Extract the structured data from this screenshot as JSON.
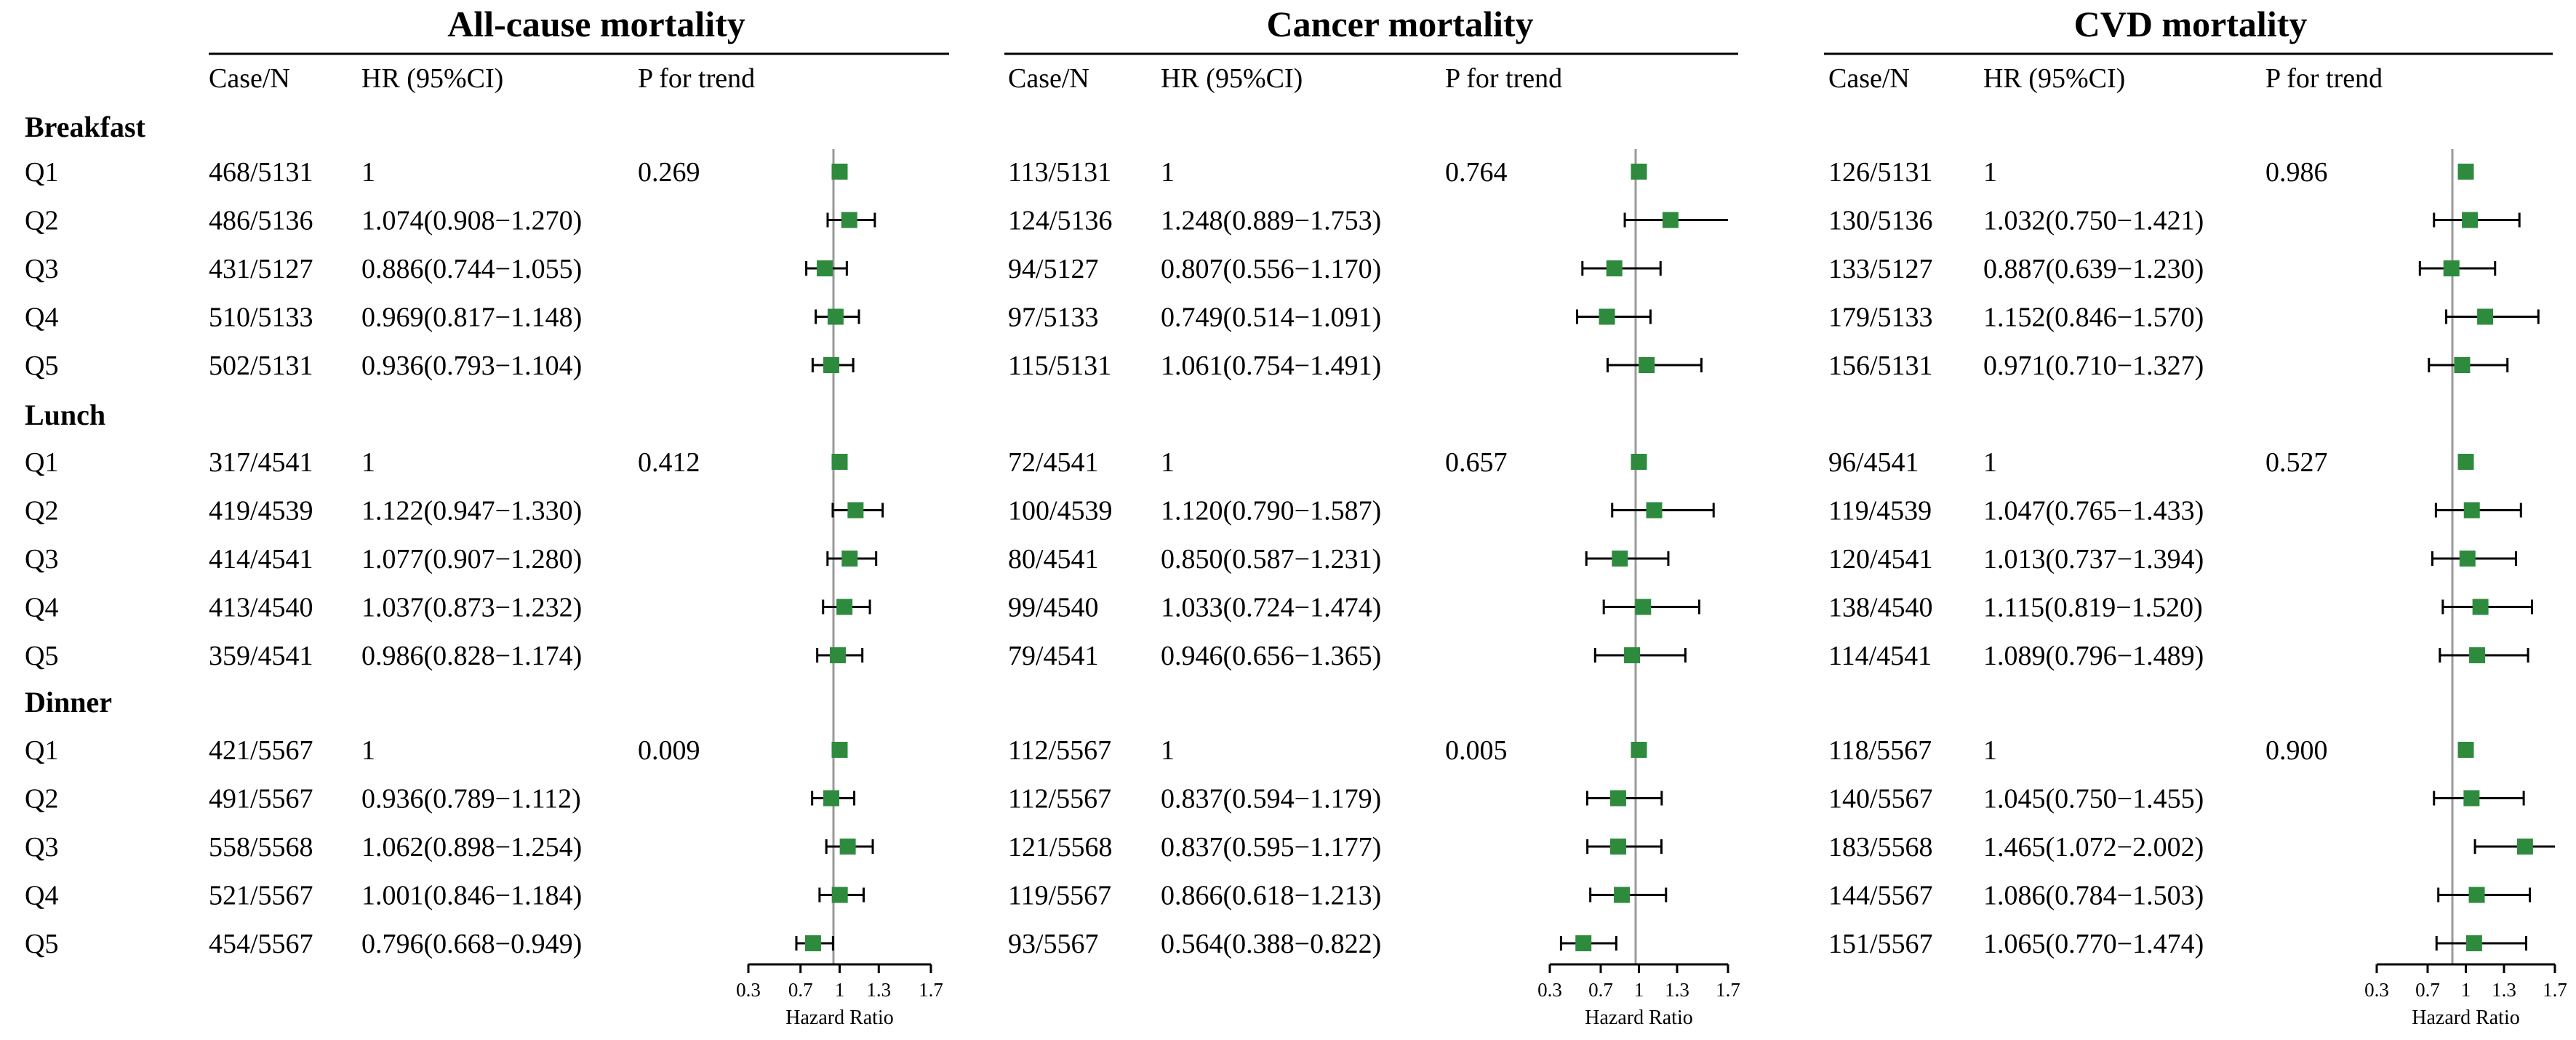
{
  "column_headers": {
    "case": "Case/N",
    "hr": "HR (95%CI)",
    "p": "P for trend"
  },
  "row_labels": [
    "Q1",
    "Q2",
    "Q3",
    "Q4",
    "Q5"
  ],
  "axis": {
    "ticks": [
      "0.3",
      "0.7",
      "1",
      "1.3",
      "1.7"
    ],
    "label": "Hazard Ratio"
  },
  "colors": {
    "marker": "#2e8b3e",
    "reference_line": "#9a9a9a",
    "ink": "#000000"
  },
  "chart_data": {
    "type": "forest",
    "xlim": [
      0.3,
      1.7
    ],
    "xticks": [
      0.3,
      0.7,
      1,
      1.3,
      1.7
    ],
    "xlabel": "Hazard Ratio",
    "reference": 1,
    "panels": [
      {
        "title": "All-cause mortality",
        "groups": [
          {
            "name": "Breakfast",
            "p_trend": "0.269",
            "rows": [
              {
                "q": "Q1",
                "case_n": "468/5131",
                "hr_text": "1",
                "hr": 1,
                "lo": null,
                "hi": null
              },
              {
                "q": "Q2",
                "case_n": "486/5136",
                "hr_text": "1.074(0.908−1.270)",
                "hr": 1.074,
                "lo": 0.908,
                "hi": 1.27
              },
              {
                "q": "Q3",
                "case_n": "431/5127",
                "hr_text": "0.886(0.744−1.055)",
                "hr": 0.886,
                "lo": 0.744,
                "hi": 1.055
              },
              {
                "q": "Q4",
                "case_n": "510/5133",
                "hr_text": "0.969(0.817−1.148)",
                "hr": 0.969,
                "lo": 0.817,
                "hi": 1.148
              },
              {
                "q": "Q5",
                "case_n": "502/5131",
                "hr_text": "0.936(0.793−1.104)",
                "hr": 0.936,
                "lo": 0.793,
                "hi": 1.104
              }
            ]
          },
          {
            "name": "Lunch",
            "p_trend": "0.412",
            "rows": [
              {
                "q": "Q1",
                "case_n": "317/4541",
                "hr_text": "1",
                "hr": 1,
                "lo": null,
                "hi": null
              },
              {
                "q": "Q2",
                "case_n": "419/4539",
                "hr_text": "1.122(0.947−1.330)",
                "hr": 1.122,
                "lo": 0.947,
                "hi": 1.33
              },
              {
                "q": "Q3",
                "case_n": "414/4541",
                "hr_text": "1.077(0.907−1.280)",
                "hr": 1.077,
                "lo": 0.907,
                "hi": 1.28
              },
              {
                "q": "Q4",
                "case_n": "413/4540",
                "hr_text": "1.037(0.873−1.232)",
                "hr": 1.037,
                "lo": 0.873,
                "hi": 1.232
              },
              {
                "q": "Q5",
                "case_n": "359/4541",
                "hr_text": "0.986(0.828−1.174)",
                "hr": 0.986,
                "lo": 0.828,
                "hi": 1.174
              }
            ]
          },
          {
            "name": "Dinner",
            "p_trend": "0.009",
            "rows": [
              {
                "q": "Q1",
                "case_n": "421/5567",
                "hr_text": "1",
                "hr": 1,
                "lo": null,
                "hi": null
              },
              {
                "q": "Q2",
                "case_n": "491/5567",
                "hr_text": "0.936(0.789−1.112)",
                "hr": 0.936,
                "lo": 0.789,
                "hi": 1.112
              },
              {
                "q": "Q3",
                "case_n": "558/5568",
                "hr_text": "1.062(0.898−1.254)",
                "hr": 1.062,
                "lo": 0.898,
                "hi": 1.254
              },
              {
                "q": "Q4",
                "case_n": "521/5567",
                "hr_text": "1.001(0.846−1.184)",
                "hr": 1.001,
                "lo": 0.846,
                "hi": 1.184
              },
              {
                "q": "Q5",
                "case_n": "454/5567",
                "hr_text": "0.796(0.668−0.949)",
                "hr": 0.796,
                "lo": 0.668,
                "hi": 0.949
              }
            ]
          }
        ]
      },
      {
        "title": "Cancer mortality",
        "groups": [
          {
            "name": "Breakfast",
            "p_trend": "0.764",
            "rows": [
              {
                "q": "Q1",
                "case_n": "113/5131",
                "hr_text": "1",
                "hr": 1,
                "lo": null,
                "hi": null
              },
              {
                "q": "Q2",
                "case_n": "124/5136",
                "hr_text": "1.248(0.889−1.753)",
                "hr": 1.248,
                "lo": 0.889,
                "hi": 1.753
              },
              {
                "q": "Q3",
                "case_n": "94/5127",
                "hr_text": "0.807(0.556−1.170)",
                "hr": 0.807,
                "lo": 0.556,
                "hi": 1.17
              },
              {
                "q": "Q4",
                "case_n": "97/5133",
                "hr_text": "0.749(0.514−1.091)",
                "hr": 0.749,
                "lo": 0.514,
                "hi": 1.091
              },
              {
                "q": "Q5",
                "case_n": "115/5131",
                "hr_text": "1.061(0.754−1.491)",
                "hr": 1.061,
                "lo": 0.754,
                "hi": 1.491
              }
            ]
          },
          {
            "name": "Lunch",
            "p_trend": "0.657",
            "rows": [
              {
                "q": "Q1",
                "case_n": "72/4541",
                "hr_text": "1",
                "hr": 1,
                "lo": null,
                "hi": null
              },
              {
                "q": "Q2",
                "case_n": "100/4539",
                "hr_text": "1.120(0.790−1.587)",
                "hr": 1.12,
                "lo": 0.79,
                "hi": 1.587
              },
              {
                "q": "Q3",
                "case_n": "80/4541",
                "hr_text": "0.850(0.587−1.231)",
                "hr": 0.85,
                "lo": 0.587,
                "hi": 1.231
              },
              {
                "q": "Q4",
                "case_n": "99/4540",
                "hr_text": "1.033(0.724−1.474)",
                "hr": 1.033,
                "lo": 0.724,
                "hi": 1.474
              },
              {
                "q": "Q5",
                "case_n": "79/4541",
                "hr_text": "0.946(0.656−1.365)",
                "hr": 0.946,
                "lo": 0.656,
                "hi": 1.365
              }
            ]
          },
          {
            "name": "Dinner",
            "p_trend": "0.005",
            "rows": [
              {
                "q": "Q1",
                "case_n": "112/5567",
                "hr_text": "1",
                "hr": 1,
                "lo": null,
                "hi": null
              },
              {
                "q": "Q2",
                "case_n": "112/5567",
                "hr_text": "0.837(0.594−1.179)",
                "hr": 0.837,
                "lo": 0.594,
                "hi": 1.179
              },
              {
                "q": "Q3",
                "case_n": "121/5568",
                "hr_text": "0.837(0.595−1.177)",
                "hr": 0.837,
                "lo": 0.595,
                "hi": 1.177
              },
              {
                "q": "Q4",
                "case_n": "119/5567",
                "hr_text": "0.866(0.618−1.213)",
                "hr": 0.866,
                "lo": 0.618,
                "hi": 1.213
              },
              {
                "q": "Q5",
                "case_n": "93/5567",
                "hr_text": "0.564(0.388−0.822)",
                "hr": 0.564,
                "lo": 0.388,
                "hi": 0.822
              }
            ]
          }
        ]
      },
      {
        "title": "CVD mortality",
        "groups": [
          {
            "name": "Breakfast",
            "p_trend": "0.986",
            "rows": [
              {
                "q": "Q1",
                "case_n": "126/5131",
                "hr_text": "1",
                "hr": 1,
                "lo": null,
                "hi": null
              },
              {
                "q": "Q2",
                "case_n": "130/5136",
                "hr_text": "1.032(0.750−1.421)",
                "hr": 1.032,
                "lo": 0.75,
                "hi": 1.421
              },
              {
                "q": "Q3",
                "case_n": "133/5127",
                "hr_text": "0.887(0.639−1.230)",
                "hr": 0.887,
                "lo": 0.639,
                "hi": 1.23
              },
              {
                "q": "Q4",
                "case_n": "179/5133",
                "hr_text": "1.152(0.846−1.570)",
                "hr": 1.152,
                "lo": 0.846,
                "hi": 1.57
              },
              {
                "q": "Q5",
                "case_n": "156/5131",
                "hr_text": "0.971(0.710−1.327)",
                "hr": 0.971,
                "lo": 0.71,
                "hi": 1.327
              }
            ]
          },
          {
            "name": "Lunch",
            "p_trend": "0.527",
            "rows": [
              {
                "q": "Q1",
                "case_n": "96/4541",
                "hr_text": "1",
                "hr": 1,
                "lo": null,
                "hi": null
              },
              {
                "q": "Q2",
                "case_n": "119/4539",
                "hr_text": "1.047(0.765−1.433)",
                "hr": 1.047,
                "lo": 0.765,
                "hi": 1.433
              },
              {
                "q": "Q3",
                "case_n": "120/4541",
                "hr_text": "1.013(0.737−1.394)",
                "hr": 1.013,
                "lo": 0.737,
                "hi": 1.394
              },
              {
                "q": "Q4",
                "case_n": "138/4540",
                "hr_text": "1.115(0.819−1.520)",
                "hr": 1.115,
                "lo": 0.819,
                "hi": 1.52
              },
              {
                "q": "Q5",
                "case_n": "114/4541",
                "hr_text": "1.089(0.796−1.489)",
                "hr": 1.089,
                "lo": 0.796,
                "hi": 1.489
              }
            ]
          },
          {
            "name": "Dinner",
            "p_trend": "0.900",
            "rows": [
              {
                "q": "Q1",
                "case_n": "118/5567",
                "hr_text": "1",
                "hr": 1,
                "lo": null,
                "hi": null
              },
              {
                "q": "Q2",
                "case_n": "140/5567",
                "hr_text": "1.045(0.750−1.455)",
                "hr": 1.045,
                "lo": 0.75,
                "hi": 1.455
              },
              {
                "q": "Q3",
                "case_n": "183/5568",
                "hr_text": "1.465(1.072−2.002)",
                "hr": 1.465,
                "lo": 1.072,
                "hi": 2.002
              },
              {
                "q": "Q4",
                "case_n": "144/5567",
                "hr_text": "1.086(0.784−1.503)",
                "hr": 1.086,
                "lo": 0.784,
                "hi": 1.503
              },
              {
                "q": "Q5",
                "case_n": "151/5567",
                "hr_text": "1.065(0.770−1.474)",
                "hr": 1.065,
                "lo": 0.77,
                "hi": 1.474
              }
            ]
          }
        ]
      }
    ]
  }
}
